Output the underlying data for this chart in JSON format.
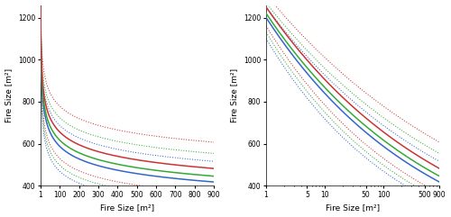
{
  "colors": {
    "blue": "#3366CC",
    "green": "#33AA33",
    "red": "#CC3333"
  },
  "ylim": [
    400,
    1260
  ],
  "yticks": [
    400,
    600,
    800,
    1000,
    1200
  ],
  "ylabel": "Fire Size [m²]",
  "xlabel": "Fire Size [m²]",
  "xticks_linear": [
    1,
    100,
    200,
    300,
    400,
    500,
    600,
    700,
    800,
    900
  ],
  "xticks_log": [
    1,
    5,
    10,
    50,
    100,
    500,
    900
  ],
  "curves": {
    "blue": {
      "p50": [
        1200,
        -0.155
      ],
      "p10": [
        1250,
        -0.13
      ],
      "p90": [
        1100,
        -0.185
      ]
    },
    "green": {
      "p50": [
        1220,
        -0.148
      ],
      "p10": [
        1270,
        -0.122
      ],
      "p90": [
        1130,
        -0.178
      ]
    },
    "red": {
      "p50": [
        1250,
        -0.14
      ],
      "p10": [
        1310,
        -0.113
      ],
      "p90": [
        1160,
        -0.17
      ]
    }
  },
  "lw_solid": 1.1,
  "lw_dot": 0.75
}
